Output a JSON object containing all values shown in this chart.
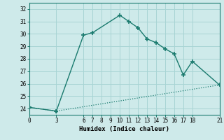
{
  "line1_x": [
    0,
    3,
    6,
    7,
    10,
    11,
    12,
    13,
    14,
    15,
    16,
    17,
    18,
    21
  ],
  "line1_y": [
    24.1,
    23.8,
    29.9,
    30.1,
    31.5,
    31.0,
    30.5,
    29.6,
    29.3,
    28.8,
    28.4,
    26.7,
    27.8,
    25.9
  ],
  "line2_x": [
    0,
    3,
    21
  ],
  "line2_y": [
    24.1,
    23.8,
    25.9
  ],
  "color": "#1a7a6e",
  "bg_color": "#ceeaea",
  "grid_color": "#a8d4d4",
  "xlabel": "Humidex (Indice chaleur)",
  "xlim": [
    0,
    21
  ],
  "ylim": [
    23.5,
    32.5
  ],
  "xticks": [
    0,
    3,
    6,
    7,
    8,
    9,
    10,
    11,
    12,
    13,
    14,
    15,
    16,
    17,
    18,
    21
  ],
  "yticks": [
    24,
    25,
    26,
    27,
    28,
    29,
    30,
    31,
    32
  ]
}
